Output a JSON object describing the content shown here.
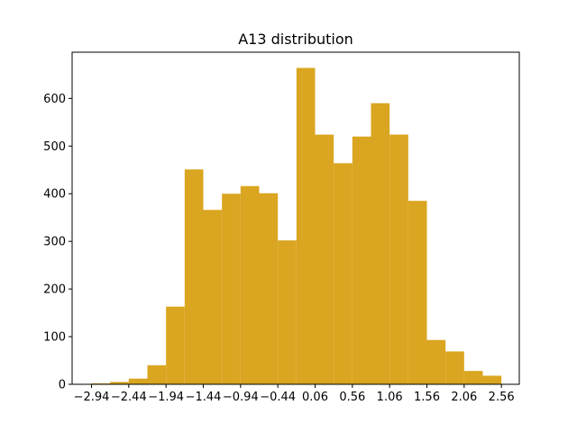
{
  "chart_data": {
    "type": "bar",
    "title": "A13 distribution",
    "xlabel": "",
    "ylabel": "",
    "bar_color": "#DAA520",
    "bin_start": -2.94,
    "bin_width": 0.25,
    "counts": [
      2,
      5,
      12,
      40,
      163,
      451,
      366,
      400,
      416,
      401,
      302,
      664,
      524,
      464,
      520,
      590,
      524,
      385,
      93,
      69,
      28,
      18
    ],
    "x_ticks": [
      -2.94,
      -2.44,
      -1.94,
      -1.44,
      -0.94,
      -0.44,
      0.06,
      0.56,
      1.06,
      1.56,
      2.06,
      2.56
    ],
    "x_tick_labels": [
      "−2.94",
      "−2.44",
      "−1.94",
      "−1.44",
      "−0.94",
      "−0.44",
      "0.06",
      "0.56",
      "1.06",
      "1.56",
      "2.06",
      "2.56"
    ],
    "xlim": [
      -3.2,
      2.8
    ],
    "y_ticks": [
      0,
      100,
      200,
      300,
      400,
      500,
      600
    ],
    "y_tick_labels": [
      "0",
      "100",
      "200",
      "300",
      "400",
      "500",
      "600"
    ],
    "ylim": [
      0,
      697
    ],
    "grid": false,
    "legend": "none"
  }
}
